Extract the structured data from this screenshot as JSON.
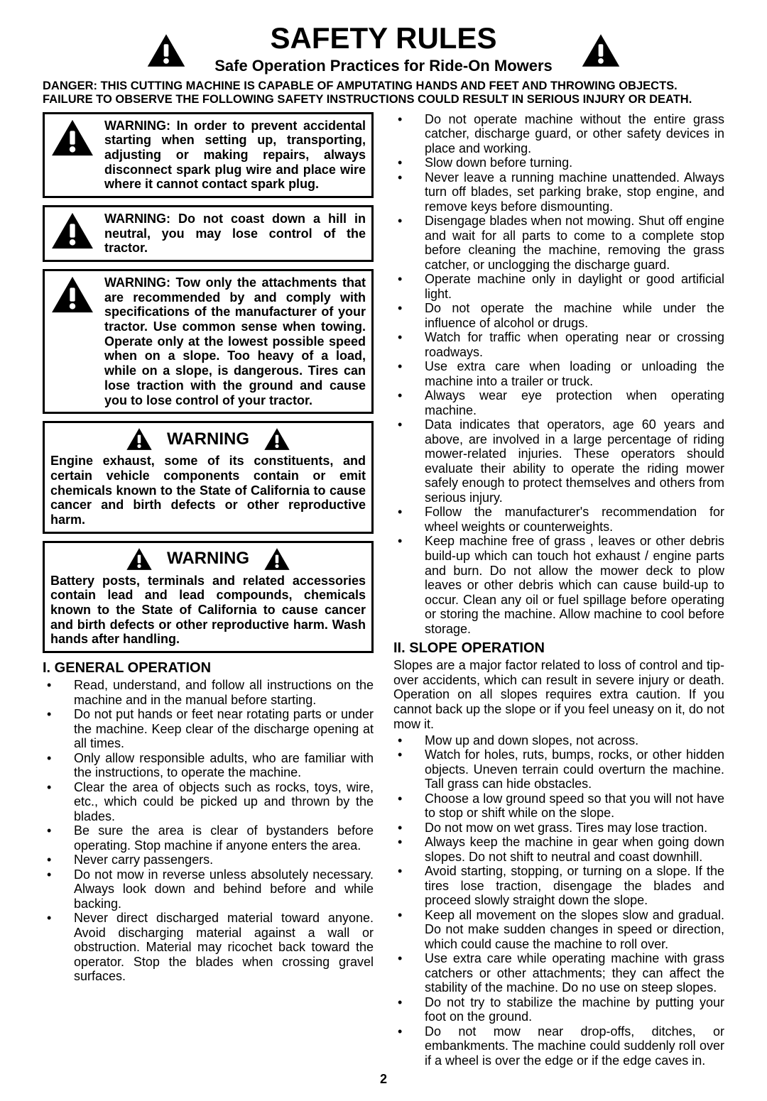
{
  "header": {
    "title": "SAFETY RULES",
    "subtitle": "Safe Operation Practices for Ride-On Mowers",
    "danger": "DANGER:  THIS CUTTING MACHINE IS CAPABLE OF AMPUTATING HANDS AND FEET AND THROWING OBJECTS.  FAILURE TO OBSERVE THE FOLLOWING SAFETY INSTRUCTIONS COULD RESULT IN SERIOUS INJURY OR DEATH."
  },
  "boxes": {
    "b1": "WARNING:  In order to prevent accidental starting when setting up, transporting, adjusting or making repairs, always disconnect spark plug wire and place wire where it cannot contact spark plug.",
    "b2": "WARNING:  Do not coast down a hill in neutral, you may lose control of the tractor.",
    "b3": "WARNING: Tow only the attachments that are recommended by and comply with specifications of the manufacturer of your tractor. Use common sense when towing. Operate only at the lowest possible speed when on a slope.  Too heavy of a load, while on a slope, is dangerous.  Tires can lose traction with the ground and cause you to lose control of your tractor.",
    "b4_title": "WARNING",
    "b4": "Engine exhaust, some of its constituents, and certain vehicle components contain or emit chemicals known to the State of California to cause cancer and birth defects or other reproductive harm.",
    "b5_title": "WARNING",
    "b5": "Battery posts, terminals and related accessories contain lead and lead compounds, chemicals known to the State of California to cause cancer and birth defects or other reproductive harm. Wash hands after handling."
  },
  "sections": {
    "s1": {
      "title": "I. GENERAL OPERATION",
      "items": [
        "Read, understand, and follow all instructions on the machine and in the manual before starting.",
        "Do not put hands or feet near rotating parts or under the machine. Keep clear of the discharge opening at all times.",
        "Only allow responsible adults, who are familiar with the instructions, to operate the machine.",
        "Clear the area of objects such as rocks, toys, wire, etc., which could be picked up and thrown by the blades.",
        "Be sure the area is clear of bystanders before operating.  Stop machine if anyone enters the area.",
        "Never carry passengers.",
        "Do not mow in reverse unless absolutely necessary. Always look down and behind before and while backing.",
        "Never direct discharged material toward anyone. Avoid discharging material against a wall or obstruction. Material may ricochet back toward the operator. Stop the blades when crossing gravel surfaces."
      ]
    },
    "s1b": {
      "items": [
        "Do not operate machine without the entire grass catcher, discharge guard, or other safety devices in place and working.",
        "Slow down before turning.",
        "Never leave a running machine unattended.  Always turn off blades, set parking brake, stop engine, and remove keys before dismounting.",
        "Disengage blades when not mowing. Shut off engine and wait for all parts to come to a complete stop before cleaning the machine, removing the grass catcher, or unclogging the discharge guard.",
        "Operate machine only in daylight or good artificial light.",
        "Do not operate the machine while under the influence of alcohol or drugs.",
        "Watch for traffic when operating near or crossing roadways.",
        "Use extra care when loading or unloading the machine into a trailer or truck.",
        "Always wear eye protection when operating machine.",
        "Data indicates that operators, age 60 years and above, are involved in a large percentage of riding mower-related injuries.  These operators should evaluate their ability to operate the riding mower safely enough to protect themselves and others from serious injury.",
        "Follow the manufacturer's recommendation for wheel weights or counterweights.",
        "Keep machine free of grass , leaves or other debris build-up which can touch hot exhaust / engine parts and burn. Do not allow the mower deck to plow leaves or other debris which can cause build-up to occur. Clean any oil or fuel spillage before operating or storing the machine. Allow machine to cool before storage."
      ]
    },
    "s2": {
      "title": "II. SLOPE OPERATION",
      "intro": "Slopes are a major factor related to loss of control and tip-over accidents, which can result in severe injury or death.  Operation on all slopes requires extra caution.  If you cannot back up the slope or if you feel uneasy on it, do not mow it.",
      "items": [
        "Mow up and down slopes, not across.",
        "Watch for holes, ruts, bumps, rocks, or other hidden objects.  Uneven terrain could overturn the machine. Tall grass can hide obstacles.",
        "Choose a low ground speed so that you will not have to stop or shift while on the slope.",
        "Do not mow on wet grass. Tires may lose traction.",
        "Always keep the machine in gear when going down slopes. Do not shift to neutral and coast downhill.",
        "Avoid starting, stopping, or turning on a slope.  If the tires lose traction,  disengage the blades and proceed slowly straight down the slope.",
        "Keep all movement on the slopes slow and gradual. Do not make sudden changes in speed or direction, which could cause the machine to roll over.",
        "Use extra care while operating machine with grass catchers or other attachments; they can affect the stability of the machine. Do no use on steep slopes.",
        "Do not  try to stabilize the machine by putting your foot on the ground.",
        "Do not mow near drop-offs, ditches, or embankments. The machine could suddenly roll over if a wheel is over the edge or if the edge caves in."
      ]
    }
  },
  "page_number": "2",
  "icons": {
    "warning_triangle": "warning-triangle-icon"
  },
  "colors": {
    "text": "#000000",
    "background": "#ffffff",
    "border": "#000000"
  }
}
